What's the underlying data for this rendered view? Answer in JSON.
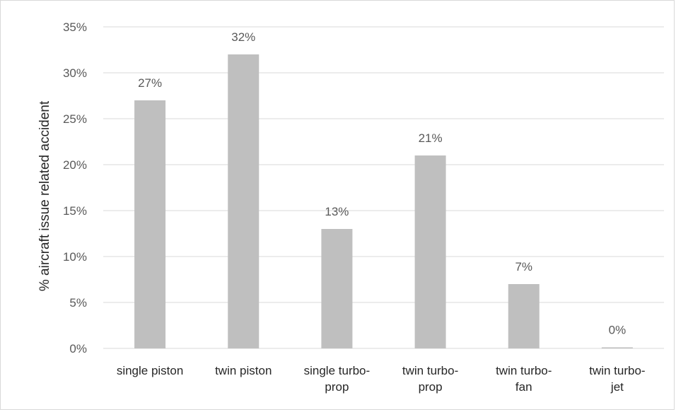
{
  "chart_data": {
    "type": "bar",
    "categories": [
      [
        "single piston"
      ],
      [
        "twin piston"
      ],
      [
        "single turbo-",
        "prop"
      ],
      [
        "twin turbo-",
        "prop"
      ],
      [
        "twin turbo-",
        "fan"
      ],
      [
        "twin turbo-",
        "jet"
      ]
    ],
    "values": [
      27,
      32,
      13,
      21,
      7,
      0
    ],
    "data_labels": [
      "27%",
      "32%",
      "13%",
      "21%",
      "7%",
      "0%"
    ],
    "xlabel": "",
    "ylabel": "% aircraft issue related accident",
    "ylim": [
      0,
      35
    ],
    "yticks": [
      0,
      5,
      10,
      15,
      20,
      25,
      30,
      35
    ],
    "ytick_labels": [
      "0%",
      "5%",
      "10%",
      "15%",
      "20%",
      "25%",
      "30%",
      "35%"
    ],
    "grid": true,
    "bar_color": "#bfbfbf",
    "grid_color": "#d9d9d9"
  }
}
